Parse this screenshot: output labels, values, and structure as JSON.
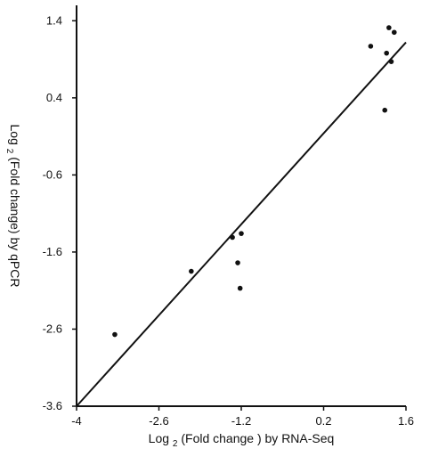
{
  "chart_data": {
    "type": "scatter",
    "xlabel_parts": [
      "Log",
      "2",
      " (Fold change ) by RNA-Seq"
    ],
    "ylabel_parts": [
      "Log",
      "2",
      "(Fold change) by qPCR"
    ],
    "xlim": [
      -4,
      1.6
    ],
    "ylim": [
      -3.6,
      1.6
    ],
    "x_ticks": [
      -4,
      -2.6,
      -1.2,
      0.2,
      1.6
    ],
    "x_tick_labels": [
      "-4",
      "-2.6",
      "-1.2",
      "0.2",
      "1.6"
    ],
    "y_ticks": [
      -3.6,
      -2.6,
      -1.6,
      -0.6,
      0.4,
      1.4
    ],
    "y_tick_labels": [
      "-3.6",
      "-2.6",
      "-1.6",
      "-0.6",
      "0.4",
      "1.4"
    ],
    "grid": false,
    "points": [
      {
        "x": -3.35,
        "y": -2.67
      },
      {
        "x": -2.05,
        "y": -1.85
      },
      {
        "x": -1.35,
        "y": -1.41
      },
      {
        "x": -1.26,
        "y": -1.74
      },
      {
        "x": -1.2,
        "y": -1.36
      },
      {
        "x": -1.22,
        "y": -2.07
      },
      {
        "x": 1.0,
        "y": 1.07
      },
      {
        "x": 1.27,
        "y": 0.98
      },
      {
        "x": 1.35,
        "y": 0.87
      },
      {
        "x": 1.31,
        "y": 1.31
      },
      {
        "x": 1.4,
        "y": 1.25
      },
      {
        "x": 1.24,
        "y": 0.24
      }
    ],
    "fit_line": {
      "x": [
        -4,
        1.6
      ],
      "y": [
        -3.6,
        1.12
      ]
    },
    "colors": {
      "marker": "#111111",
      "line": "#111111",
      "axis": "#111111"
    }
  }
}
